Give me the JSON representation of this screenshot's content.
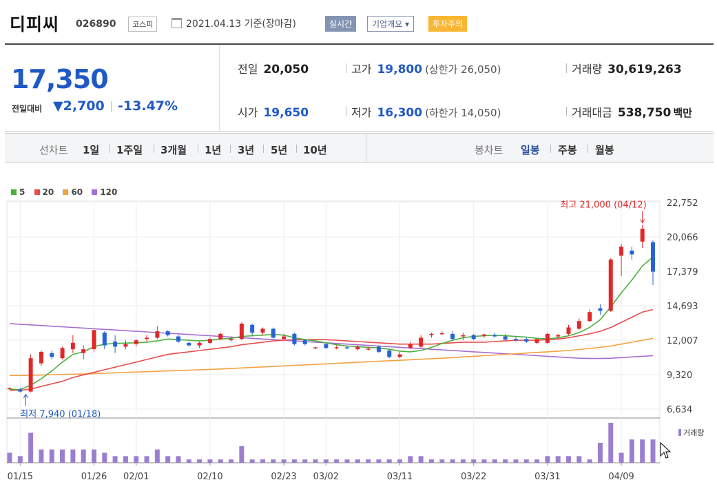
{
  "header": {
    "name": "디피씨",
    "code": "026890",
    "market": "코스피",
    "date_text": "2021.04.13 기준(장마감)",
    "realtime_btn": "실시간",
    "company_btn": "기업개요",
    "warning_badge": "투자주의"
  },
  "price": {
    "current": "17,350",
    "compare_label": "전일대비",
    "change": "2,700",
    "change_rate": "-13.47%",
    "prev_label": "전일",
    "prev_value": "20,050",
    "high_label": "고가",
    "high_value": "19,800",
    "upper_limit": "(상한가 26,050)",
    "volume_label": "거래량",
    "volume_value": "30,619,263",
    "open_label": "시가",
    "open_value": "19,650",
    "low_label": "저가",
    "low_value": "16,300",
    "lower_limit": "(하한가 14,050)",
    "amount_label": "거래대금",
    "amount_value": "538,750",
    "amount_unit": "백만"
  },
  "tabs": {
    "line_label": "선차트",
    "periods": [
      "1일",
      "1주일",
      "3개월",
      "1년",
      "3년",
      "5년",
      "10년"
    ],
    "candle_label": "봉차트",
    "candle_periods": [
      "일봉",
      "주봉",
      "월봉"
    ],
    "active_candle": "일봉"
  },
  "legend": {
    "ma5": "5",
    "ma20": "20",
    "ma60": "60",
    "ma120": "120",
    "colors": {
      "ma5": "#4caf3c",
      "ma20": "#e84c4c",
      "ma60": "#f5a040",
      "ma120": "#a56fd2"
    }
  },
  "annotations": {
    "high_note": "최고 21,000 (04/12)",
    "low_note": "최저 7,940 (01/18)"
  },
  "volume_label": "거래량",
  "chart_data": {
    "type": "candlestick",
    "y_ticks": [
      "22,752",
      "20,066",
      "17,379",
      "14,693",
      "12,007",
      "9,320",
      "6,634"
    ],
    "ylim": [
      6634,
      22752
    ],
    "x_ticks": [
      "01/15",
      "01/26",
      "02/01",
      "02/10",
      "02/23",
      "03/02",
      "03/11",
      "03/22",
      "03/31",
      "04/09"
    ],
    "candles": [
      {
        "date": "01/14",
        "o": 8250,
        "h": 8350,
        "l": 8150,
        "c": 8250
      },
      {
        "date": "01/15",
        "o": 8150,
        "h": 8300,
        "l": 7940,
        "c": 8000
      },
      {
        "date": "01/18",
        "o": 8000,
        "h": 10900,
        "l": 7940,
        "c": 10600
      },
      {
        "date": "01/19",
        "o": 10200,
        "h": 11200,
        "l": 10000,
        "c": 11100
      },
      {
        "date": "01/20",
        "o": 11000,
        "h": 11200,
        "l": 10500,
        "c": 10700
      },
      {
        "date": "01/21",
        "o": 10600,
        "h": 11500,
        "l": 10500,
        "c": 11400
      },
      {
        "date": "01/22",
        "o": 11300,
        "h": 12400,
        "l": 11000,
        "c": 11800
      },
      {
        "date": "01/25",
        "o": 11000,
        "h": 11600,
        "l": 10500,
        "c": 11300
      },
      {
        "date": "01/26",
        "o": 11300,
        "h": 12800,
        "l": 11100,
        "c": 12800
      },
      {
        "date": "01/27",
        "o": 12600,
        "h": 12700,
        "l": 11300,
        "c": 11600
      },
      {
        "date": "01/28",
        "o": 11900,
        "h": 12400,
        "l": 11000,
        "c": 11500
      },
      {
        "date": "01/29",
        "o": 11500,
        "h": 12000,
        "l": 11300,
        "c": 11700
      },
      {
        "date": "02/01",
        "o": 11700,
        "h": 12100,
        "l": 11500,
        "c": 12000
      },
      {
        "date": "02/02",
        "o": 12100,
        "h": 12400,
        "l": 11900,
        "c": 12200
      },
      {
        "date": "02/03",
        "o": 12200,
        "h": 13100,
        "l": 12100,
        "c": 12700
      },
      {
        "date": "02/04",
        "o": 12700,
        "h": 12800,
        "l": 12300,
        "c": 12400
      },
      {
        "date": "02/05",
        "o": 12300,
        "h": 12400,
        "l": 11800,
        "c": 11900
      },
      {
        "date": "02/08",
        "o": 11800,
        "h": 11900,
        "l": 11500,
        "c": 11600
      },
      {
        "date": "02/09",
        "o": 11600,
        "h": 11900,
        "l": 11400,
        "c": 11800
      },
      {
        "date": "02/10",
        "o": 11800,
        "h": 12200,
        "l": 11700,
        "c": 12100
      },
      {
        "date": "02/15",
        "o": 12100,
        "h": 12600,
        "l": 12000,
        "c": 12500
      },
      {
        "date": "02/16",
        "o": 12000,
        "h": 12300,
        "l": 11900,
        "c": 12100
      },
      {
        "date": "02/17",
        "o": 12100,
        "h": 13400,
        "l": 12000,
        "c": 13300
      },
      {
        "date": "02/18",
        "o": 13200,
        "h": 13300,
        "l": 12400,
        "c": 12600
      },
      {
        "date": "02/19",
        "o": 12600,
        "h": 13000,
        "l": 12400,
        "c": 12900
      },
      {
        "date": "02/22",
        "o": 12900,
        "h": 13000,
        "l": 12100,
        "c": 12200
      },
      {
        "date": "02/23",
        "o": 12100,
        "h": 12500,
        "l": 12000,
        "c": 12300
      },
      {
        "date": "02/24",
        "o": 12500,
        "h": 12600,
        "l": 11600,
        "c": 11700
      },
      {
        "date": "02/25",
        "o": 12000,
        "h": 12100,
        "l": 11600,
        "c": 11700
      },
      {
        "date": "02/26",
        "o": 11400,
        "h": 11500,
        "l": 11300,
        "c": 11450
      },
      {
        "date": "03/02",
        "o": 11700,
        "h": 11800,
        "l": 11300,
        "c": 11400
      },
      {
        "date": "03/03",
        "o": 11400,
        "h": 11600,
        "l": 11300,
        "c": 11450
      },
      {
        "date": "03/04",
        "o": 11450,
        "h": 11600,
        "l": 11300,
        "c": 11400
      },
      {
        "date": "03/05",
        "o": 11300,
        "h": 11600,
        "l": 11200,
        "c": 11500
      },
      {
        "date": "03/08",
        "o": 11300,
        "h": 11500,
        "l": 11200,
        "c": 11350
      },
      {
        "date": "03/09",
        "o": 11500,
        "h": 11600,
        "l": 11000,
        "c": 11100
      },
      {
        "date": "03/10",
        "o": 11200,
        "h": 11300,
        "l": 10600,
        "c": 10700
      },
      {
        "date": "03/11",
        "o": 10700,
        "h": 11100,
        "l": 10600,
        "c": 10900
      },
      {
        "date": "03/12",
        "o": 11400,
        "h": 11900,
        "l": 11300,
        "c": 11700
      },
      {
        "date": "03/15",
        "o": 11500,
        "h": 12400,
        "l": 11400,
        "c": 12200
      },
      {
        "date": "03/16",
        "o": 12400,
        "h": 12600,
        "l": 12200,
        "c": 12500
      },
      {
        "date": "03/17",
        "o": 12500,
        "h": 12700,
        "l": 12400,
        "c": 12550
      },
      {
        "date": "03/18",
        "o": 12500,
        "h": 12700,
        "l": 12000,
        "c": 12100
      },
      {
        "date": "03/19",
        "o": 12300,
        "h": 12600,
        "l": 12000,
        "c": 12400
      },
      {
        "date": "03/22",
        "o": 12400,
        "h": 12500,
        "l": 12000,
        "c": 12100
      },
      {
        "date": "03/23",
        "o": 12350,
        "h": 12500,
        "l": 12200,
        "c": 12450
      },
      {
        "date": "03/24",
        "o": 12400,
        "h": 12600,
        "l": 12200,
        "c": 12300
      },
      {
        "date": "03/25",
        "o": 12300,
        "h": 12500,
        "l": 12000,
        "c": 12050
      },
      {
        "date": "03/26",
        "o": 12100,
        "h": 12300,
        "l": 11900,
        "c": 12000
      },
      {
        "date": "03/29",
        "o": 12100,
        "h": 12200,
        "l": 11800,
        "c": 11900
      },
      {
        "date": "03/30",
        "o": 11800,
        "h": 12100,
        "l": 11700,
        "c": 12100
      },
      {
        "date": "03/31",
        "o": 11800,
        "h": 12600,
        "l": 11700,
        "c": 12500
      },
      {
        "date": "04/01",
        "o": 12300,
        "h": 12500,
        "l": 12100,
        "c": 12400
      },
      {
        "date": "04/02",
        "o": 12500,
        "h": 13200,
        "l": 12400,
        "c": 13000
      },
      {
        "date": "04/05",
        "o": 12900,
        "h": 13700,
        "l": 12800,
        "c": 13500
      },
      {
        "date": "04/06",
        "o": 13500,
        "h": 14400,
        "l": 13400,
        "c": 14200
      },
      {
        "date": "04/07",
        "o": 14500,
        "h": 14800,
        "l": 14000,
        "c": 14300
      },
      {
        "date": "04/08",
        "o": 14300,
        "h": 18400,
        "l": 14200,
        "c": 18300
      },
      {
        "date": "04/09",
        "o": 18600,
        "h": 19500,
        "l": 17000,
        "c": 19300
      },
      {
        "date": "04/12",
        "o": 19000,
        "h": 19300,
        "l": 18300,
        "c": 18700
      },
      {
        "date": "04/12b",
        "o": 19700,
        "h": 21000,
        "l": 19200,
        "c": 20700
      },
      {
        "date": "04/13",
        "o": 19650,
        "h": 19800,
        "l": 16300,
        "c": 17350
      }
    ],
    "volume": [
      3,
      2,
      9,
      4,
      4,
      4,
      4,
      4,
      4,
      3,
      2,
      2,
      2,
      2,
      4,
      2,
      2,
      1,
      1,
      1,
      1,
      1,
      5,
      1,
      1,
      1,
      1,
      1,
      1,
      1,
      1,
      1,
      1,
      1,
      1,
      1,
      1,
      1,
      2,
      2,
      1,
      1,
      1,
      1,
      1,
      1,
      1,
      1,
      1,
      1,
      1,
      2,
      2,
      2,
      2,
      1,
      6,
      12,
      3,
      7,
      7,
      7
    ],
    "ma5": [
      8200,
      8150,
      8500,
      9000,
      9600,
      10300,
      10900,
      11100,
      11500,
      11700,
      11750,
      11780,
      11800,
      11850,
      11950,
      12100,
      12050,
      12000,
      11950,
      12000,
      12100,
      12150,
      12300,
      12350,
      12400,
      12450,
      12400,
      12200,
      12050,
      11950,
      11800,
      11650,
      11550,
      11500,
      11450,
      11400,
      11300,
      11150,
      11100,
      11200,
      11450,
      11750,
      12000,
      12200,
      12300,
      12350,
      12400,
      12350,
      12300,
      12250,
      12150,
      12100,
      12200,
      12350,
      12600,
      13000,
      13600,
      14600,
      15700,
      16700,
      17800,
      18500
    ],
    "ma20": [
      8100,
      8100,
      8200,
      8400,
      8600,
      8800,
      9100,
      9300,
      9500,
      9700,
      9900,
      10100,
      10300,
      10500,
      10700,
      10900,
      11000,
      11100,
      11200,
      11300,
      11400,
      11500,
      11650,
      11750,
      11850,
      11950,
      12000,
      12050,
      12050,
      12050,
      12050,
      12000,
      11950,
      11900,
      11850,
      11800,
      11750,
      11700,
      11700,
      11700,
      11700,
      11750,
      11800,
      11850,
      11850,
      11850,
      11900,
      11950,
      12000,
      12000,
      12000,
      12050,
      12100,
      12200,
      12350,
      12500,
      12700,
      13000,
      13400,
      13800,
      14200,
      14400
    ],
    "ma60": [
      9250,
      9250,
      9270,
      9290,
      9310,
      9330,
      9350,
      9370,
      9400,
      9430,
      9460,
      9490,
      9520,
      9550,
      9580,
      9610,
      9640,
      9670,
      9700,
      9730,
      9760,
      9800,
      9840,
      9880,
      9920,
      9960,
      10000,
      10040,
      10080,
      10120,
      10160,
      10200,
      10240,
      10280,
      10320,
      10360,
      10400,
      10440,
      10480,
      10520,
      10560,
      10600,
      10650,
      10700,
      10750,
      10800,
      10850,
      10900,
      10950,
      11000,
      11050,
      11100,
      11150,
      11200,
      11280,
      11360,
      11450,
      11550,
      11700,
      11850,
      12000,
      12150
    ],
    "ma120": [
      13300,
      13250,
      13200,
      13150,
      13100,
      13050,
      13000,
      12950,
      12900,
      12850,
      12800,
      12750,
      12700,
      12650,
      12600,
      12550,
      12500,
      12450,
      12400,
      12350,
      12300,
      12250,
      12200,
      12150,
      12100,
      12050,
      12000,
      11950,
      11900,
      11850,
      11800,
      11750,
      11700,
      11650,
      11600,
      11550,
      11500,
      11450,
      11400,
      11350,
      11300,
      11250,
      11200,
      11150,
      11100,
      11050,
      11000,
      10950,
      10900,
      10850,
      10800,
      10750,
      10700,
      10650,
      10600,
      10580,
      10580,
      10600,
      10650,
      10700,
      10750,
      10800
    ]
  }
}
